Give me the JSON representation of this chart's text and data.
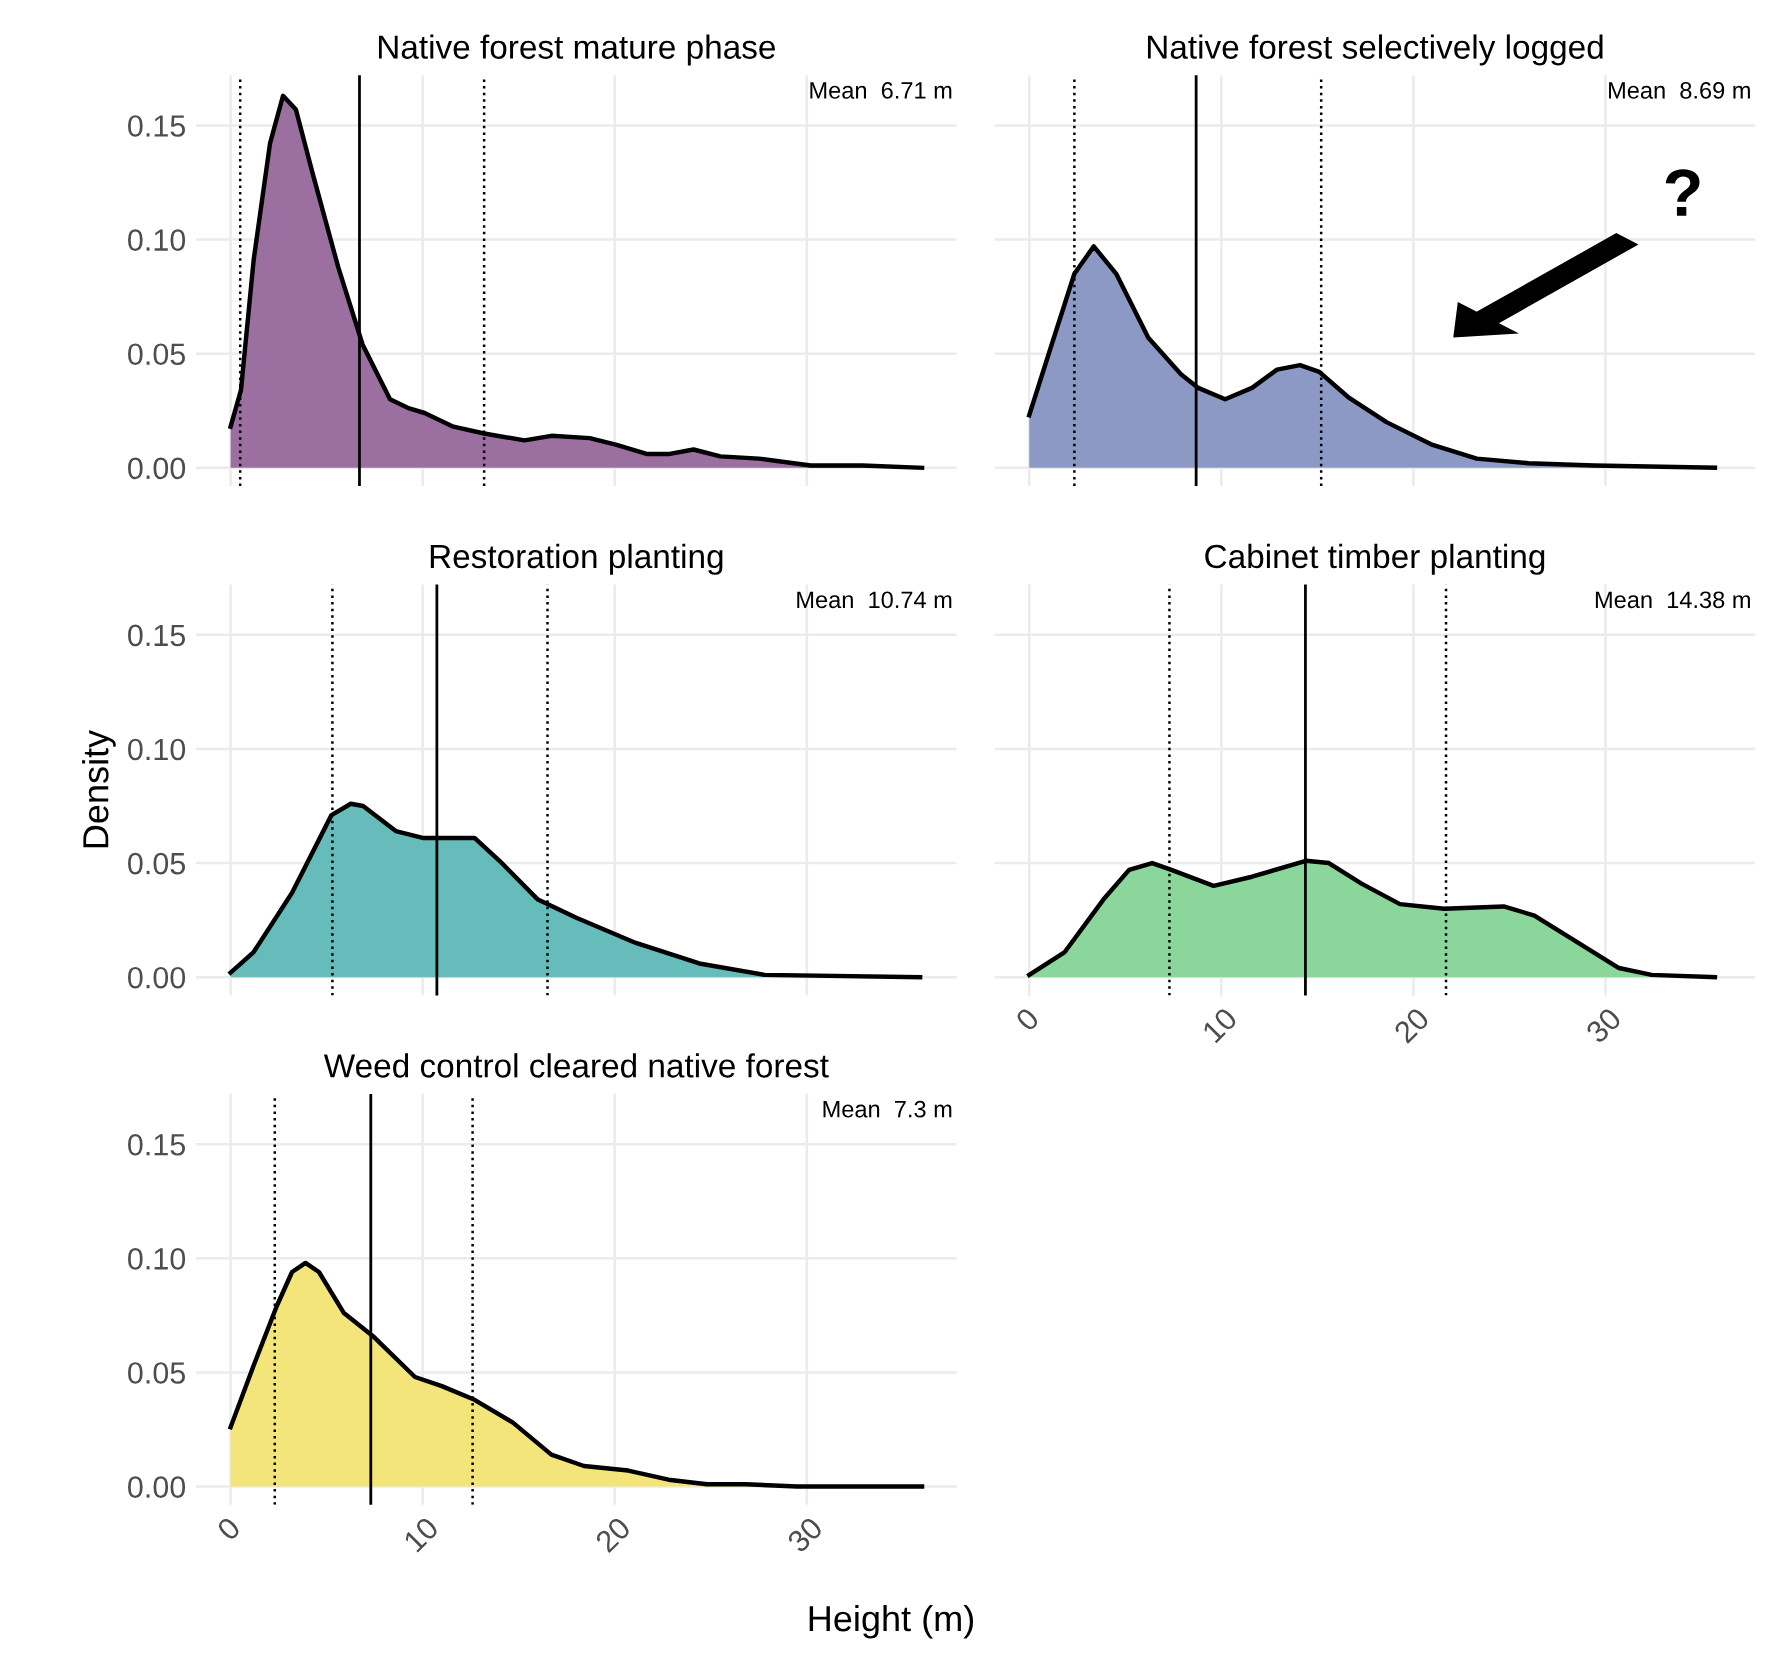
{
  "chart_data": [
    {
      "type": "area",
      "title": "Native forest mature phase",
      "x": [
        0,
        0.54,
        1.2,
        2.05,
        2.73,
        3.4,
        4.24,
        5.6,
        6.87,
        8.3,
        9.3,
        10.1,
        11.6,
        13.2,
        15.3,
        16.7,
        18.7,
        20.1,
        21.7,
        22.8,
        24.1,
        25.5,
        27.5,
        30.2,
        32.9,
        36
      ],
      "series": [
        {
          "color": "#9b6fa0",
          "values": [
            0.018,
            0.034,
            0.091,
            0.142,
            0.163,
            0.157,
            0.13,
            0.088,
            0.054,
            0.03,
            0.026,
            0.024,
            0.018,
            0.015,
            0.012,
            0.014,
            0.013,
            0.01,
            0.006,
            0.006,
            0.008,
            0.005,
            0.004,
            0.001,
            0.001,
            0
          ]
        }
      ],
      "ref_lines": [
        {
          "axis": "x",
          "value": 6.71,
          "label": "Mean  6.71 m",
          "line_style": "solid"
        },
        {
          "axis": "x",
          "value": 0.5,
          "line_style": "dotted"
        },
        {
          "axis": "x",
          "value": 13.2,
          "line_style": "dotted"
        }
      ],
      "xlim": [
        -1.8,
        37.8
      ],
      "ylim": [
        -0.008,
        0.172
      ],
      "xticks": [
        0,
        10,
        20,
        30
      ],
      "yticks": [
        {
          "value": 0,
          "label": "0.00"
        },
        {
          "value": 0.05,
          "label": "0.05"
        },
        {
          "value": 0.1,
          "label": "0.10"
        },
        {
          "value": 0.15,
          "label": "0.15"
        }
      ],
      "grid": true,
      "tick_labels": "y"
    },
    {
      "type": "area",
      "title": "Native forest selectively logged",
      "x": [
        0,
        1.17,
        2.35,
        3.36,
        4.53,
        6.2,
        7.9,
        8.8,
        10.2,
        11.6,
        12.9,
        14.1,
        15.1,
        16.6,
        18.6,
        21.0,
        23.3,
        26.0,
        29.4,
        35.7
      ],
      "series": [
        {
          "color": "#8d99c5",
          "values": [
            0.023,
            0.054,
            0.085,
            0.097,
            0.085,
            0.057,
            0.041,
            0.035,
            0.03,
            0.035,
            0.043,
            0.045,
            0.042,
            0.031,
            0.02,
            0.01,
            0.004,
            0.002,
            0.001,
            0
          ]
        }
      ],
      "ref_lines": [
        {
          "axis": "x",
          "value": 8.69,
          "label": "Mean  8.69 m",
          "line_style": "solid"
        },
        {
          "axis": "x",
          "value": 2.35,
          "line_style": "dotted"
        },
        {
          "axis": "x",
          "value": 15.2,
          "line_style": "dotted"
        }
      ],
      "annotations": [
        "?"
      ],
      "xlim": [
        -1.8,
        37.8
      ],
      "ylim": [
        -0.008,
        0.172
      ],
      "xticks": [
        0,
        10,
        20,
        30
      ],
      "yticks": [
        {
          "value": 0,
          "label": null
        },
        {
          "value": 0.05,
          "label": null
        },
        {
          "value": 0.1,
          "label": null
        },
        {
          "value": 0.15,
          "label": null
        }
      ],
      "grid": true,
      "tick_labels": false
    },
    {
      "type": "area",
      "title": "Restoration planting",
      "ylabel": "Density",
      "x": [
        0,
        1.2,
        3.2,
        5.25,
        6.26,
        6.9,
        8.6,
        10.0,
        12.7,
        14.0,
        16.0,
        18.0,
        21.1,
        24.4,
        27.8,
        35.9
      ],
      "series": [
        {
          "color": "#66bcbb",
          "values": [
            0.002,
            0.011,
            0.037,
            0.071,
            0.076,
            0.075,
            0.064,
            0.061,
            0.061,
            0.051,
            0.034,
            0.026,
            0.015,
            0.006,
            0.001,
            0
          ]
        }
      ],
      "ref_lines": [
        {
          "axis": "x",
          "value": 10.74,
          "label": "Mean  10.74 m",
          "line_style": "solid"
        },
        {
          "axis": "x",
          "value": 5.3,
          "line_style": "dotted"
        },
        {
          "axis": "x",
          "value": 16.5,
          "line_style": "dotted"
        }
      ],
      "xlim": [
        -1.8,
        37.8
      ],
      "ylim": [
        -0.008,
        0.172
      ],
      "xticks": [
        0,
        10,
        20,
        30
      ],
      "yticks": [
        {
          "value": 0,
          "label": "0.00"
        },
        {
          "value": 0.05,
          "label": "0.05"
        },
        {
          "value": 0.1,
          "label": "0.10"
        },
        {
          "value": 0.15,
          "label": "0.15"
        }
      ],
      "grid": true,
      "tick_labels": "y"
    },
    {
      "type": "area",
      "title": "Cabinet timber planting",
      "x": [
        0,
        1.85,
        3.86,
        5.2,
        6.4,
        7.4,
        9.6,
        11.6,
        14.4,
        15.6,
        17.3,
        19.3,
        21.6,
        24.7,
        26.3,
        28.4,
        30.7,
        32.4,
        35.7
      ],
      "series": [
        {
          "color": "#8bd79b",
          "values": [
            0.001,
            0.011,
            0.034,
            0.047,
            0.05,
            0.047,
            0.04,
            0.044,
            0.051,
            0.05,
            0.041,
            0.032,
            0.03,
            0.031,
            0.027,
            0.016,
            0.004,
            0.001,
            0
          ]
        }
      ],
      "ref_lines": [
        {
          "axis": "x",
          "value": 14.38,
          "label": "Mean  14.38 m",
          "line_style": "solid"
        },
        {
          "axis": "x",
          "value": 7.3,
          "line_style": "dotted"
        },
        {
          "axis": "x",
          "value": 21.7,
          "line_style": "dotted"
        }
      ],
      "xlim": [
        -1.8,
        37.8
      ],
      "ylim": [
        -0.008,
        0.172
      ],
      "xticks": [
        0,
        10,
        20,
        30
      ],
      "yticks": [
        {
          "value": 0,
          "label": null
        },
        {
          "value": 0.05,
          "label": null
        },
        {
          "value": 0.1,
          "label": null
        },
        {
          "value": 0.15,
          "label": null
        }
      ],
      "grid": true,
      "tick_labels": "x"
    },
    {
      "type": "area",
      "title": "Weed control cleared native forest",
      "xlabel": "Height (m)",
      "x": [
        0,
        1.2,
        2.4,
        3.2,
        3.9,
        4.6,
        5.9,
        7.4,
        9.6,
        11.0,
        12.7,
        14.7,
        16.7,
        18.4,
        20.7,
        22.8,
        24.8,
        26.8,
        29.5,
        36
      ],
      "series": [
        {
          "color": "#f4e57a",
          "values": [
            0.026,
            0.053,
            0.079,
            0.094,
            0.098,
            0.094,
            0.076,
            0.066,
            0.048,
            0.044,
            0.038,
            0.028,
            0.014,
            0.009,
            0.007,
            0.003,
            0.001,
            0.001,
            0,
            0
          ]
        }
      ],
      "ref_lines": [
        {
          "axis": "x",
          "value": 7.3,
          "label": "Mean  7.3 m",
          "line_style": "solid"
        },
        {
          "axis": "x",
          "value": 2.3,
          "line_style": "dotted"
        },
        {
          "axis": "x",
          "value": 12.6,
          "line_style": "dotted"
        }
      ],
      "xlim": [
        -1.8,
        37.8
      ],
      "ylim": [
        -0.008,
        0.172
      ],
      "xticks": [
        0,
        10,
        20,
        30
      ],
      "yticks": [
        {
          "value": 0,
          "label": "0.00"
        },
        {
          "value": 0.05,
          "label": "0.05"
        },
        {
          "value": 0.1,
          "label": "0.10"
        },
        {
          "value": 0.15,
          "label": "0.15"
        }
      ],
      "grid": true
    }
  ]
}
